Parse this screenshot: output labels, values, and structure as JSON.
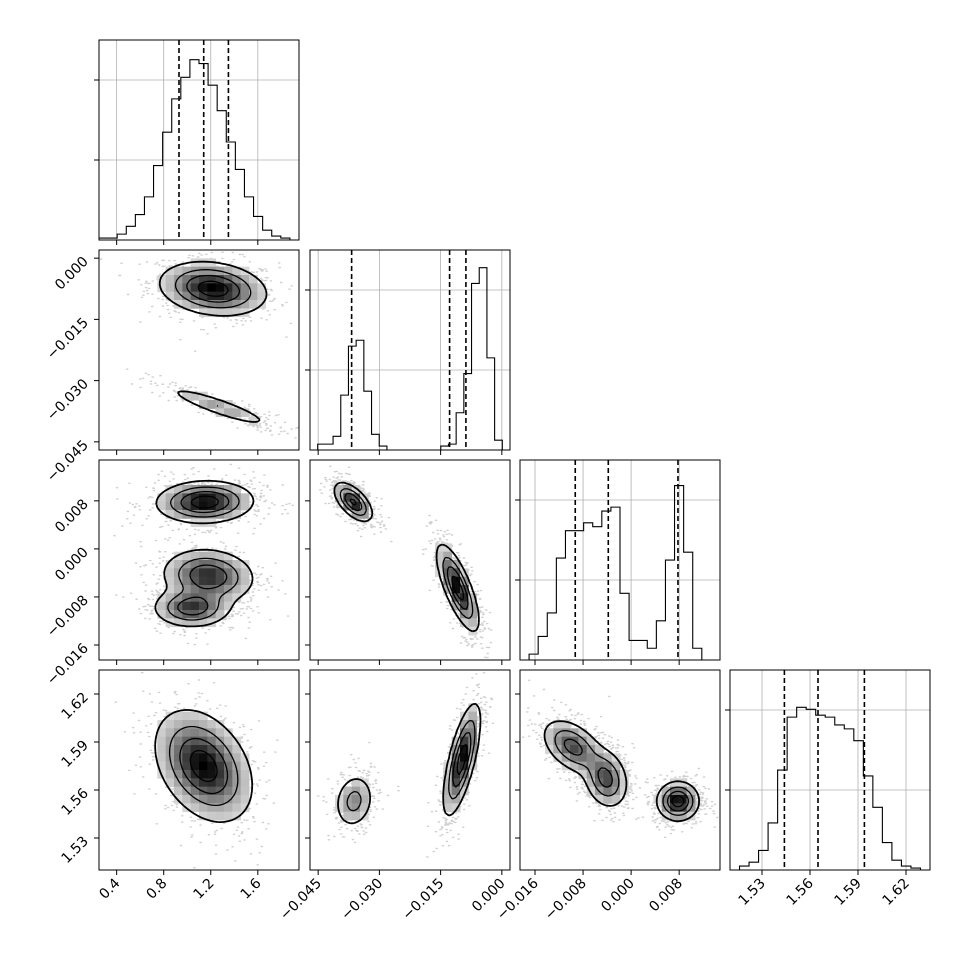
{
  "chart_data": {
    "type": "corner",
    "grid": true,
    "params": [
      {
        "range": [
          0.25,
          1.95
        ],
        "ticks": [
          0.4,
          0.8,
          1.2,
          1.6
        ],
        "tick_labels": [
          "0.4",
          "0.8",
          "1.2",
          "1.6"
        ],
        "quantiles": [
          0.93,
          1.14,
          1.35
        ]
      },
      {
        "range": [
          -0.047,
          0.002
        ],
        "ticks": [
          -0.045,
          -0.03,
          -0.015,
          0.0
        ],
        "tick_labels": [
          "−0.045",
          "−0.030",
          "−0.015",
          "0.000"
        ],
        "quantiles": [
          -0.0368,
          -0.0128,
          -0.0088
        ]
      },
      {
        "range": [
          -0.0185,
          0.0148
        ],
        "ticks": [
          -0.016,
          -0.008,
          0.0,
          0.008
        ],
        "tick_labels": [
          "−0.016",
          "−0.008",
          "0.000",
          "0.008"
        ],
        "quantiles": [
          -0.0093,
          -0.0038,
          0.0078
        ]
      },
      {
        "range": [
          1.51,
          1.635
        ],
        "ticks": [
          1.53,
          1.56,
          1.59,
          1.62
        ],
        "tick_labels": [
          "1.53",
          "1.56",
          "1.59",
          "1.62"
        ],
        "quantiles": [
          1.544,
          1.565,
          1.594
        ]
      }
    ],
    "histograms": [
      {
        "param": 0,
        "values": [
          0.01,
          0.01,
          0.03,
          0.07,
          0.13,
          0.22,
          0.38,
          0.55,
          0.72,
          0.83,
          0.92,
          0.9,
          0.79,
          0.66,
          0.5,
          0.36,
          0.22,
          0.12,
          0.05,
          0.02,
          0.01,
          0.0
        ]
      },
      {
        "param": 1,
        "values": [
          0.0,
          0.03,
          0.03,
          0.07,
          0.28,
          0.53,
          0.56,
          0.3,
          0.08,
          0.02,
          0.0,
          0.0,
          0.0,
          0.0,
          0.0,
          0.0,
          0.0,
          0.02,
          0.03,
          0.19,
          0.39,
          0.85,
          0.93,
          0.47,
          0.05,
          0.0
        ]
      },
      {
        "param": 2,
        "values": [
          0.0,
          0.03,
          0.12,
          0.24,
          0.52,
          0.66,
          0.66,
          0.7,
          0.68,
          0.76,
          0.78,
          0.34,
          0.1,
          0.1,
          0.06,
          0.2,
          0.51,
          0.89,
          0.55,
          0.06,
          0.0,
          0.0
        ]
      },
      {
        "param": 3,
        "values": [
          0.0,
          0.02,
          0.04,
          0.1,
          0.24,
          0.51,
          0.78,
          0.83,
          0.82,
          0.79,
          0.78,
          0.74,
          0.72,
          0.66,
          0.48,
          0.32,
          0.14,
          0.05,
          0.02,
          0.01,
          0.0
        ]
      }
    ],
    "blobs": [
      {
        "x": 0,
        "y": 1,
        "mx": 1.22,
        "my": -0.0075,
        "sx": 0.22,
        "sy": 0.0032,
        "rho": -0.2,
        "w": 1.0
      },
      {
        "x": 0,
        "y": 1,
        "mx": 1.27,
        "my": -0.0364,
        "sx": 0.24,
        "sy": 0.0026,
        "rho": -0.9,
        "w": 0.35
      },
      {
        "x": 0,
        "y": 2,
        "mx": 1.15,
        "my": 0.0078,
        "sx": 0.2,
        "sy": 0.0017,
        "rho": 0.05,
        "w": 0.9
      },
      {
        "x": 0,
        "y": 2,
        "mx": 1.18,
        "my": -0.0045,
        "sx": 0.19,
        "sy": 0.0022,
        "rho": -0.1,
        "w": 0.75
      },
      {
        "x": 0,
        "y": 2,
        "mx": 1.04,
        "my": -0.0098,
        "sx": 0.16,
        "sy": 0.0016,
        "rho": 0.0,
        "w": 0.7
      },
      {
        "x": 0,
        "y": 3,
        "mx": 1.14,
        "my": 1.575,
        "sx": 0.2,
        "sy": 0.017,
        "rho": -0.35,
        "w": 1.0
      },
      {
        "x": 1,
        "y": 2,
        "mx": -0.0364,
        "my": 0.0078,
        "sx": 0.0023,
        "sy": 0.0016,
        "rho": -0.6,
        "w": 0.9
      },
      {
        "x": 1,
        "y": 2,
        "mx": -0.0108,
        "my": -0.0065,
        "sx": 0.0025,
        "sy": 0.0035,
        "rho": -0.75,
        "w": 1.0
      },
      {
        "x": 1,
        "y": 3,
        "mx": -0.0362,
        "my": 1.553,
        "sx": 0.0024,
        "sy": 0.0085,
        "rho": 0.15,
        "w": 0.45
      },
      {
        "x": 1,
        "y": 3,
        "mx": -0.0098,
        "my": 1.579,
        "sx": 0.0022,
        "sy": 0.017,
        "rho": 0.7,
        "w": 1.0
      },
      {
        "x": 2,
        "y": 3,
        "mx": -0.0097,
        "my": 1.587,
        "sx": 0.0025,
        "sy": 0.0085,
        "rho": -0.45,
        "w": 0.7
      },
      {
        "x": 2,
        "y": 3,
        "mx": -0.0042,
        "my": 1.567,
        "sx": 0.0018,
        "sy": 0.009,
        "rho": -0.2,
        "w": 0.7
      },
      {
        "x": 2,
        "y": 3,
        "mx": 0.0078,
        "my": 1.553,
        "sx": 0.0017,
        "sy": 0.006,
        "rho": 0.0,
        "w": 1.0
      }
    ]
  }
}
